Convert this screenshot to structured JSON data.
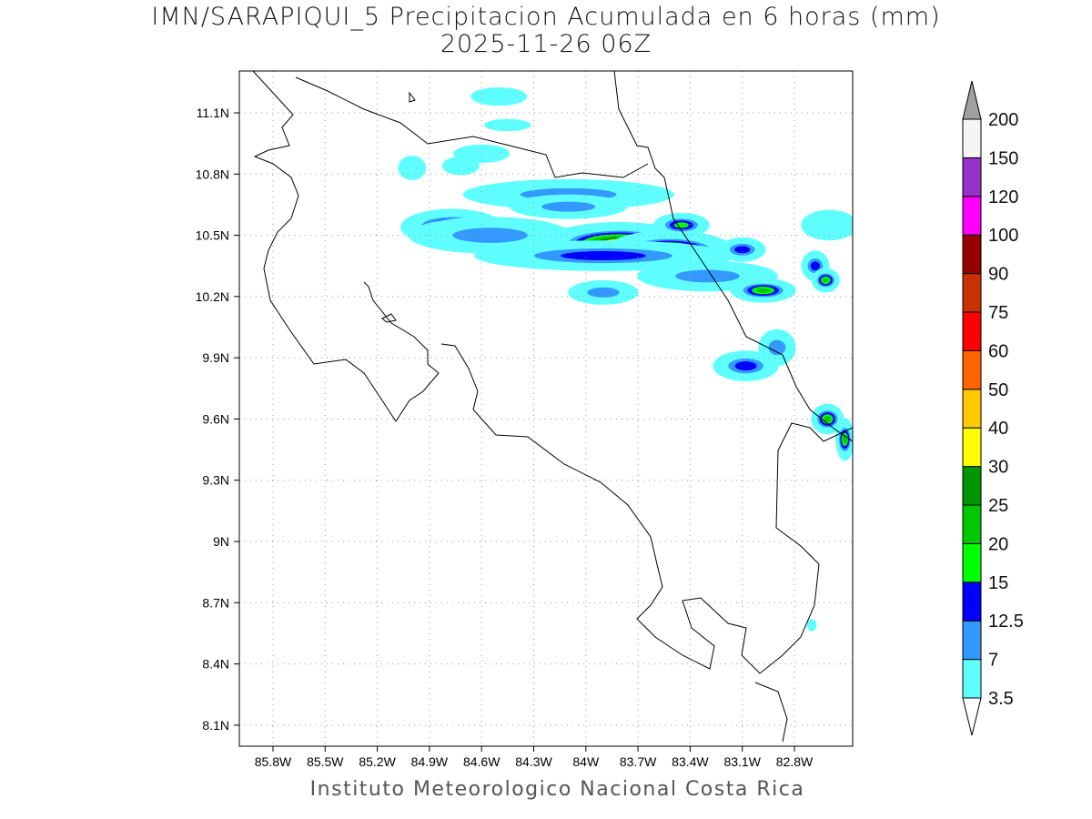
{
  "title_line1": "IMN/SARAPIQUI_5 Precipitacion Acumulada en 6 horas (mm)",
  "title_line2": "2025-11-26 06Z",
  "footer": "Instituto Meteorologico Nacional Costa Rica",
  "chart_data": {
    "type": "heatmap",
    "variable": "Precipitacion Acumulada en 6 horas (mm)",
    "lon_range": [
      -86.0,
      -82.5
    ],
    "lat_range": [
      8.0,
      11.3
    ],
    "lon_ticks": [
      "85.8W",
      "85.5W",
      "85.2W",
      "84.9W",
      "84.6W",
      "84.3W",
      "84W",
      "83.7W",
      "83.4W",
      "83.1W",
      "82.8W"
    ],
    "lon_tick_values": [
      -85.8,
      -85.5,
      -85.2,
      -84.9,
      -84.6,
      -84.3,
      -84.0,
      -83.7,
      -83.4,
      -83.1,
      -82.8
    ],
    "lat_ticks": [
      "11.1N",
      "10.8N",
      "10.5N",
      "10.2N",
      "9.9N",
      "9.6N",
      "9.3N",
      "9N",
      "8.7N",
      "8.4N",
      "8.1N"
    ],
    "lat_tick_values": [
      11.1,
      10.8,
      10.5,
      10.2,
      9.9,
      9.6,
      9.3,
      9.0,
      8.7,
      8.4,
      8.1
    ],
    "grid": true,
    "colorbar": {
      "levels": [
        "3.5",
        "7",
        "12.5",
        "15",
        "20",
        "25",
        "30",
        "40",
        "50",
        "60",
        "75",
        "90",
        "100",
        "120",
        "150",
        "200"
      ],
      "colors": [
        "#5fffff",
        "#3399ff",
        "#0000ff",
        "#00ff00",
        "#00c800",
        "#009600",
        "#ffff00",
        "#ffc800",
        "#ff6400",
        "#ff0000",
        "#c83200",
        "#960000",
        "#ff00ff",
        "#9632c8",
        "#f5f5f5"
      ],
      "over_color": "#a0a0a0",
      "under_color": "#ffffff"
    },
    "cells": [
      {
        "lon": -84.77,
        "lat": 10.54,
        "dlon": 0.22,
        "dlat": 0.06,
        "max": 20
      },
      {
        "lon": -84.55,
        "lat": 10.5,
        "dlon": 0.35,
        "dlat": 0.06,
        "max": 7
      },
      {
        "lon": -84.1,
        "lat": 10.7,
        "dlon": 0.45,
        "dlat": 0.05,
        "max": 7
      },
      {
        "lon": -83.81,
        "lat": 10.46,
        "dlon": 0.33,
        "dlat": 0.07,
        "max": 40
      },
      {
        "lon": -83.52,
        "lat": 10.42,
        "dlon": 0.28,
        "dlat": 0.07,
        "max": 40
      },
      {
        "lon": -83.9,
        "lat": 10.4,
        "dlon": 0.55,
        "dlat": 0.05,
        "max": 12.5
      },
      {
        "lon": -83.45,
        "lat": 10.55,
        "dlon": 0.12,
        "dlat": 0.04,
        "max": 15
      },
      {
        "lon": -83.3,
        "lat": 10.3,
        "dlon": 0.3,
        "dlat": 0.05,
        "max": 7
      },
      {
        "lon": -83.1,
        "lat": 10.43,
        "dlon": 0.1,
        "dlat": 0.04,
        "max": 12.5
      },
      {
        "lon": -82.98,
        "lat": 10.23,
        "dlon": 0.14,
        "dlat": 0.04,
        "max": 20
      },
      {
        "lon": -83.9,
        "lat": 10.22,
        "dlon": 0.15,
        "dlat": 0.04,
        "max": 7
      },
      {
        "lon": -82.68,
        "lat": 10.35,
        "dlon": 0.06,
        "dlat": 0.05,
        "max": 12.5
      },
      {
        "lon": -82.62,
        "lat": 10.28,
        "dlon": 0.06,
        "dlat": 0.04,
        "max": 20
      },
      {
        "lon": -82.6,
        "lat": 10.55,
        "dlon": 0.12,
        "dlat": 0.05,
        "max": 3.5
      },
      {
        "lon": -83.08,
        "lat": 9.86,
        "dlon": 0.14,
        "dlat": 0.05,
        "max": 12.5
      },
      {
        "lon": -82.9,
        "lat": 9.95,
        "dlon": 0.08,
        "dlat": 0.06,
        "max": 7
      },
      {
        "lon": -82.61,
        "lat": 9.6,
        "dlon": 0.07,
        "dlat": 0.05,
        "max": 20
      },
      {
        "lon": -82.51,
        "lat": 9.5,
        "dlon": 0.04,
        "dlat": 0.07,
        "max": 20
      },
      {
        "lon": -84.6,
        "lat": 10.9,
        "dlon": 0.12,
        "dlat": 0.03,
        "max": 3.5
      },
      {
        "lon": -84.5,
        "lat": 11.18,
        "dlon": 0.12,
        "dlat": 0.03,
        "max": 3.5
      },
      {
        "lon": -84.72,
        "lat": 10.84,
        "dlon": 0.08,
        "dlat": 0.03,
        "max": 3.5
      },
      {
        "lon": -85.0,
        "lat": 10.83,
        "dlon": 0.06,
        "dlat": 0.04,
        "max": 3.5
      },
      {
        "lon": -84.1,
        "lat": 10.64,
        "dlon": 0.25,
        "dlat": 0.04,
        "max": 7
      },
      {
        "lon": -84.45,
        "lat": 11.04,
        "dlon": 0.1,
        "dlat": 0.02,
        "max": 3.5
      },
      {
        "lon": -82.7,
        "lat": 8.59,
        "dlon": 0.02,
        "dlat": 0.02,
        "max": 3.5
      }
    ]
  }
}
